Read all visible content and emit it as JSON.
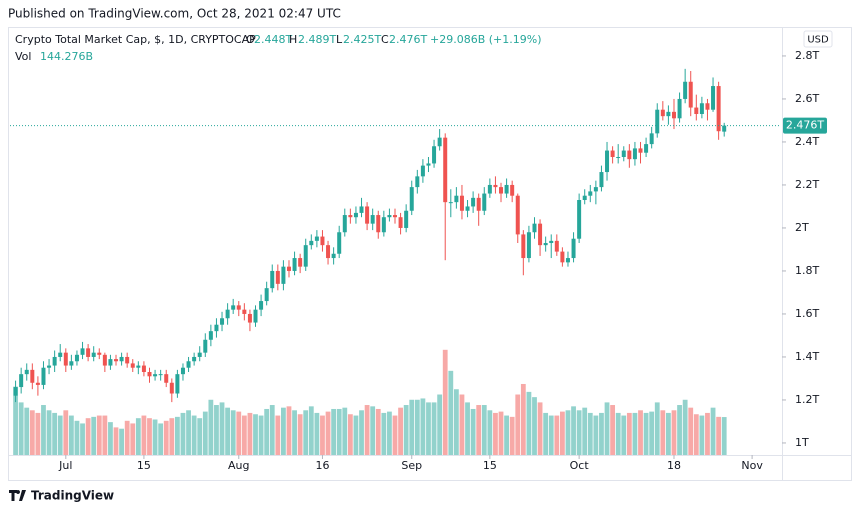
{
  "header": "Published on TradingView.com, Oct 28, 2021 02:47 UTC",
  "footer": "TradingView",
  "chart_data": {
    "type": "candlestick",
    "title": "Crypto Total Market Cap, $, 1D, CRYPTOCAP",
    "ohlc_letters": [
      "O",
      "H",
      "L",
      "C"
    ],
    "ohlc_labels": [
      "2.448T",
      "2.489T",
      "2.425T",
      "2.476T"
    ],
    "change_label": "+29.086B (+1.19%)",
    "volume_name": "Vol",
    "volume_label": "144.276B",
    "currency": "USD",
    "last_price_label": "2.476T",
    "up_color": "#26a69a",
    "down_color": "#ef5350",
    "grid": false,
    "x": [
      "06-22",
      "06-23",
      "06-24",
      "06-25",
      "06-26",
      "06-27",
      "06-28",
      "06-29",
      "06-30",
      "07-01",
      "07-02",
      "07-03",
      "07-04",
      "07-05",
      "07-06",
      "07-07",
      "07-08",
      "07-09",
      "07-10",
      "07-11",
      "07-12",
      "07-13",
      "07-14",
      "07-15",
      "07-16",
      "07-17",
      "07-18",
      "07-19",
      "07-20",
      "07-21",
      "07-22",
      "07-23",
      "07-24",
      "07-25",
      "07-26",
      "07-27",
      "07-28",
      "07-29",
      "07-30",
      "07-31",
      "08-01",
      "08-02",
      "08-03",
      "08-04",
      "08-05",
      "08-06",
      "08-07",
      "08-08",
      "08-09",
      "08-10",
      "08-11",
      "08-12",
      "08-13",
      "08-14",
      "08-15",
      "08-16",
      "08-17",
      "08-18",
      "08-19",
      "08-20",
      "08-21",
      "08-22",
      "08-23",
      "08-24",
      "08-25",
      "08-26",
      "08-27",
      "08-28",
      "08-29",
      "08-30",
      "08-31",
      "09-01",
      "09-02",
      "09-03",
      "09-04",
      "09-05",
      "09-06",
      "09-07",
      "09-08",
      "09-09",
      "09-10",
      "09-11",
      "09-12",
      "09-13",
      "09-14",
      "09-15",
      "09-16",
      "09-17",
      "09-18",
      "09-19",
      "09-20",
      "09-21",
      "09-22",
      "09-23",
      "09-24",
      "09-25",
      "09-26",
      "09-27",
      "09-28",
      "09-29",
      "09-30",
      "10-01",
      "10-02",
      "10-03",
      "10-04",
      "10-05",
      "10-06",
      "10-07",
      "10-08",
      "10-09",
      "10-10",
      "10-11",
      "10-12",
      "10-13",
      "10-14",
      "10-15",
      "10-16",
      "10-17",
      "10-18",
      "10-19",
      "10-20",
      "10-21",
      "10-22",
      "10-23",
      "10-24",
      "10-25",
      "10-26",
      "10-27"
    ],
    "open": [
      1.22,
      1.26,
      1.32,
      1.34,
      1.28,
      1.27,
      1.35,
      1.36,
      1.4,
      1.42,
      1.36,
      1.38,
      1.41,
      1.44,
      1.4,
      1.42,
      1.41,
      1.36,
      1.39,
      1.38,
      1.4,
      1.37,
      1.35,
      1.36,
      1.33,
      1.31,
      1.32,
      1.32,
      1.28,
      1.23,
      1.32,
      1.35,
      1.38,
      1.4,
      1.42,
      1.48,
      1.52,
      1.55,
      1.58,
      1.62,
      1.64,
      1.62,
      1.6,
      1.56,
      1.62,
      1.66,
      1.72,
      1.8,
      1.74,
      1.82,
      1.8,
      1.86,
      1.82,
      1.92,
      1.94,
      1.96,
      1.92,
      1.86,
      1.88,
      1.98,
      2.06,
      2.05,
      2.07,
      2.1,
      2.02,
      2.06,
      1.98,
      2.05,
      2.06,
      2.05,
      2.0,
      2.08,
      2.19,
      2.24,
      2.29,
      2.3,
      2.38,
      2.42,
      2.12,
      2.12,
      2.15,
      2.08,
      2.1,
      2.14,
      2.08,
      2.16,
      2.2,
      2.19,
      2.16,
      2.2,
      2.15,
      1.97,
      1.86,
      1.98,
      2.02,
      1.92,
      1.93,
      1.94,
      1.89,
      1.84,
      1.86,
      1.95,
      2.13,
      2.15,
      2.17,
      2.19,
      2.26,
      2.36,
      2.33,
      2.33,
      2.36,
      2.32,
      2.37,
      2.35,
      2.39,
      2.44,
      2.55,
      2.52,
      2.54,
      2.51,
      2.6,
      2.68,
      2.56,
      2.53,
      2.58,
      2.55,
      2.66,
      2.448
    ],
    "high": [
      1.29,
      1.35,
      1.37,
      1.37,
      1.31,
      1.38,
      1.39,
      1.43,
      1.46,
      1.44,
      1.41,
      1.43,
      1.47,
      1.46,
      1.45,
      1.44,
      1.42,
      1.41,
      1.41,
      1.42,
      1.42,
      1.39,
      1.38,
      1.38,
      1.35,
      1.34,
      1.34,
      1.34,
      1.3,
      1.34,
      1.37,
      1.4,
      1.42,
      1.45,
      1.51,
      1.55,
      1.58,
      1.61,
      1.65,
      1.67,
      1.66,
      1.65,
      1.62,
      1.64,
      1.69,
      1.75,
      1.83,
      1.83,
      1.85,
      1.85,
      1.89,
      1.88,
      1.95,
      1.97,
      1.99,
      1.99,
      1.94,
      1.91,
      2.01,
      2.09,
      2.09,
      2.1,
      2.14,
      2.12,
      2.09,
      2.08,
      2.08,
      2.09,
      2.09,
      2.07,
      2.11,
      2.22,
      2.27,
      2.32,
      2.33,
      2.41,
      2.46,
      2.44,
      2.18,
      2.19,
      2.2,
      2.13,
      2.17,
      2.16,
      2.19,
      2.23,
      2.24,
      2.21,
      2.23,
      2.22,
      2.16,
      1.99,
      2.01,
      2.05,
      2.04,
      1.96,
      1.97,
      1.97,
      1.91,
      1.89,
      1.98,
      2.16,
      2.18,
      2.2,
      2.22,
      2.29,
      2.4,
      2.38,
      2.39,
      2.38,
      2.39,
      2.4,
      2.4,
      2.42,
      2.47,
      2.58,
      2.59,
      2.57,
      2.6,
      2.63,
      2.74,
      2.73,
      2.62,
      2.61,
      2.6,
      2.7,
      2.68,
      2.489
    ],
    "low": [
      1.19,
      1.23,
      1.29,
      1.25,
      1.22,
      1.25,
      1.32,
      1.33,
      1.38,
      1.33,
      1.34,
      1.36,
      1.39,
      1.38,
      1.38,
      1.39,
      1.33,
      1.34,
      1.36,
      1.36,
      1.35,
      1.33,
      1.32,
      1.31,
      1.28,
      1.29,
      1.29,
      1.26,
      1.19,
      1.21,
      1.29,
      1.33,
      1.36,
      1.38,
      1.4,
      1.45,
      1.49,
      1.52,
      1.55,
      1.6,
      1.59,
      1.57,
      1.52,
      1.54,
      1.59,
      1.64,
      1.7,
      1.71,
      1.71,
      1.77,
      1.78,
      1.79,
      1.8,
      1.9,
      1.91,
      1.89,
      1.83,
      1.83,
      1.86,
      1.96,
      2.02,
      2.02,
      2.05,
      1.99,
      1.99,
      1.95,
      1.96,
      2.03,
      2.02,
      1.97,
      1.98,
      2.06,
      2.16,
      2.21,
      2.26,
      2.28,
      2.36,
      1.85,
      2.05,
      2.09,
      2.04,
      2.05,
      2.07,
      2.01,
      2.06,
      2.14,
      2.16,
      2.12,
      2.14,
      2.12,
      1.93,
      1.78,
      1.84,
      1.95,
      1.87,
      1.89,
      1.86,
      1.87,
      1.82,
      1.82,
      1.84,
      1.93,
      2.11,
      2.12,
      2.11,
      2.17,
      2.22,
      2.3,
      2.3,
      2.31,
      2.28,
      2.29,
      2.3,
      2.33,
      2.37,
      2.42,
      2.5,
      2.48,
      2.46,
      2.49,
      2.58,
      2.52,
      2.5,
      2.51,
      2.5,
      2.54,
      2.41,
      2.425
    ],
    "close": [
      1.26,
      1.32,
      1.34,
      1.28,
      1.27,
      1.35,
      1.36,
      1.4,
      1.42,
      1.36,
      1.38,
      1.41,
      1.44,
      1.4,
      1.42,
      1.41,
      1.36,
      1.39,
      1.38,
      1.4,
      1.37,
      1.35,
      1.36,
      1.33,
      1.31,
      1.32,
      1.32,
      1.28,
      1.23,
      1.32,
      1.35,
      1.38,
      1.4,
      1.42,
      1.48,
      1.52,
      1.55,
      1.58,
      1.62,
      1.64,
      1.62,
      1.6,
      1.56,
      1.62,
      1.66,
      1.72,
      1.8,
      1.74,
      1.82,
      1.8,
      1.86,
      1.82,
      1.92,
      1.94,
      1.96,
      1.92,
      1.86,
      1.88,
      1.98,
      2.06,
      2.05,
      2.07,
      2.1,
      2.02,
      2.06,
      1.98,
      2.05,
      2.06,
      2.05,
      2.0,
      2.08,
      2.19,
      2.24,
      2.29,
      2.3,
      2.38,
      2.42,
      2.12,
      2.12,
      2.15,
      2.08,
      2.1,
      2.14,
      2.08,
      2.16,
      2.2,
      2.19,
      2.16,
      2.2,
      2.15,
      1.97,
      1.86,
      1.98,
      2.02,
      1.92,
      1.93,
      1.94,
      1.89,
      1.84,
      1.86,
      1.95,
      2.13,
      2.15,
      2.17,
      2.19,
      2.26,
      2.36,
      2.33,
      2.33,
      2.36,
      2.32,
      2.37,
      2.35,
      2.39,
      2.44,
      2.55,
      2.52,
      2.54,
      2.51,
      2.6,
      2.68,
      2.56,
      2.53,
      2.58,
      2.55,
      2.66,
      2.45,
      2.476
    ],
    "volume": [
      260,
      200,
      180,
      170,
      160,
      190,
      170,
      160,
      150,
      170,
      150,
      130,
      120,
      140,
      145,
      150,
      150,
      125,
      105,
      100,
      130,
      120,
      140,
      150,
      140,
      135,
      120,
      130,
      140,
      145,
      160,
      170,
      150,
      140,
      165,
      210,
      190,
      200,
      180,
      170,
      165,
      150,
      160,
      155,
      150,
      175,
      190,
      150,
      180,
      185,
      170,
      155,
      170,
      185,
      160,
      150,
      165,
      175,
      175,
      180,
      155,
      150,
      170,
      190,
      185,
      175,
      160,
      165,
      150,
      180,
      190,
      210,
      210,
      215,
      200,
      200,
      230,
      400,
      320,
      250,
      230,
      200,
      175,
      190,
      190,
      170,
      160,
      165,
      150,
      145,
      230,
      270,
      240,
      220,
      200,
      160,
      150,
      150,
      165,
      170,
      185,
      170,
      180,
      160,
      150,
      160,
      200,
      190,
      160,
      150,
      160,
      160,
      170,
      160,
      165,
      200,
      170,
      160,
      170,
      190,
      210,
      180,
      155,
      150,
      160,
      180,
      145,
      144.276
    ],
    "ylim": [
      0.944,
      2.93
    ],
    "yticks": [
      {
        "value": 1,
        "label": "1T"
      },
      {
        "value": 1.2,
        "label": "1.2T"
      },
      {
        "value": 1.4,
        "label": "1.4T"
      },
      {
        "value": 1.6,
        "label": "1.6T"
      },
      {
        "value": 1.8,
        "label": "1.8T"
      },
      {
        "value": 2,
        "label": "2T"
      },
      {
        "value": 2.2,
        "label": "2.2T"
      },
      {
        "value": 2.4,
        "label": "2.4T"
      },
      {
        "value": 2.6,
        "label": "2.6T"
      },
      {
        "value": 2.8,
        "label": "2.8T"
      }
    ],
    "xlim": [
      "06-21",
      "11-06"
    ],
    "xticks": [
      {
        "value": "07-01",
        "label": "Jul"
      },
      {
        "value": "07-15",
        "label": "15"
      },
      {
        "value": "08-01",
        "label": "Aug"
      },
      {
        "value": "08-16",
        "label": "16"
      },
      {
        "value": "09-01",
        "label": "Sep"
      },
      {
        "value": "09-15",
        "label": "15"
      },
      {
        "value": "10-01",
        "label": "Oct"
      },
      {
        "value": "10-18",
        "label": "18"
      },
      {
        "value": "11-01",
        "label": "Nov"
      }
    ]
  }
}
